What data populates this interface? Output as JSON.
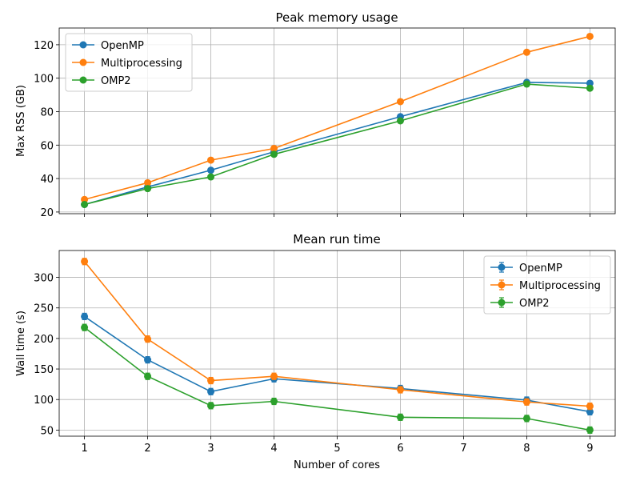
{
  "chart_data": [
    {
      "type": "line",
      "title": "Peak memory usage",
      "xlabel": "",
      "ylabel": "Max RSS (GB)",
      "xlim": [
        0.6,
        9.4
      ],
      "ylim": [
        19,
        130
      ],
      "x_ticks": [
        1,
        2,
        3,
        4,
        5,
        6,
        7,
        8,
        9
      ],
      "y_ticks": [
        20,
        40,
        60,
        80,
        100,
        120
      ],
      "show_x_tick_labels": false,
      "grid": true,
      "legend_position": "upper-left",
      "error_bars": false,
      "series": [
        {
          "name": "OpenMP",
          "color": "#1f77b4",
          "x": [
            1,
            2,
            3,
            4,
            6,
            8,
            9
          ],
          "y": [
            24.5,
            35,
            45,
            56,
            77,
            97.5,
            97
          ]
        },
        {
          "name": "Multiprocessing",
          "color": "#ff7f0e",
          "x": [
            1,
            2,
            3,
            4,
            6,
            8,
            9
          ],
          "y": [
            27.5,
            37.5,
            51,
            58,
            86,
            115.5,
            125
          ]
        },
        {
          "name": "OMP2",
          "color": "#2ca02c",
          "x": [
            1,
            2,
            3,
            4,
            6,
            8,
            9
          ],
          "y": [
            24.5,
            34,
            41,
            54.5,
            74.5,
            96.5,
            94
          ]
        }
      ]
    },
    {
      "type": "line",
      "title": "Mean run time",
      "xlabel": "Number of cores",
      "ylabel": "Wall time (s)",
      "xlim": [
        0.6,
        9.4
      ],
      "ylim": [
        40,
        344
      ],
      "x_ticks": [
        1,
        2,
        3,
        4,
        5,
        6,
        7,
        8,
        9
      ],
      "y_ticks": [
        50,
        100,
        150,
        200,
        250,
        300
      ],
      "show_x_tick_labels": true,
      "grid": true,
      "legend_position": "upper-right",
      "error_bars": true,
      "series": [
        {
          "name": "OpenMP",
          "color": "#1f77b4",
          "x": [
            1,
            2,
            3,
            4,
            6,
            8,
            9
          ],
          "y": [
            236,
            165,
            113,
            134,
            118,
            99,
            80
          ]
        },
        {
          "name": "Multiprocessing",
          "color": "#ff7f0e",
          "x": [
            1,
            2,
            3,
            4,
            6,
            8,
            9
          ],
          "y": [
            326,
            199,
            131,
            138,
            116,
            96,
            89
          ]
        },
        {
          "name": "OMP2",
          "color": "#2ca02c",
          "x": [
            1,
            2,
            3,
            4,
            6,
            8,
            9
          ],
          "y": [
            218,
            138,
            90,
            97,
            71,
            69,
            50
          ]
        }
      ]
    }
  ]
}
